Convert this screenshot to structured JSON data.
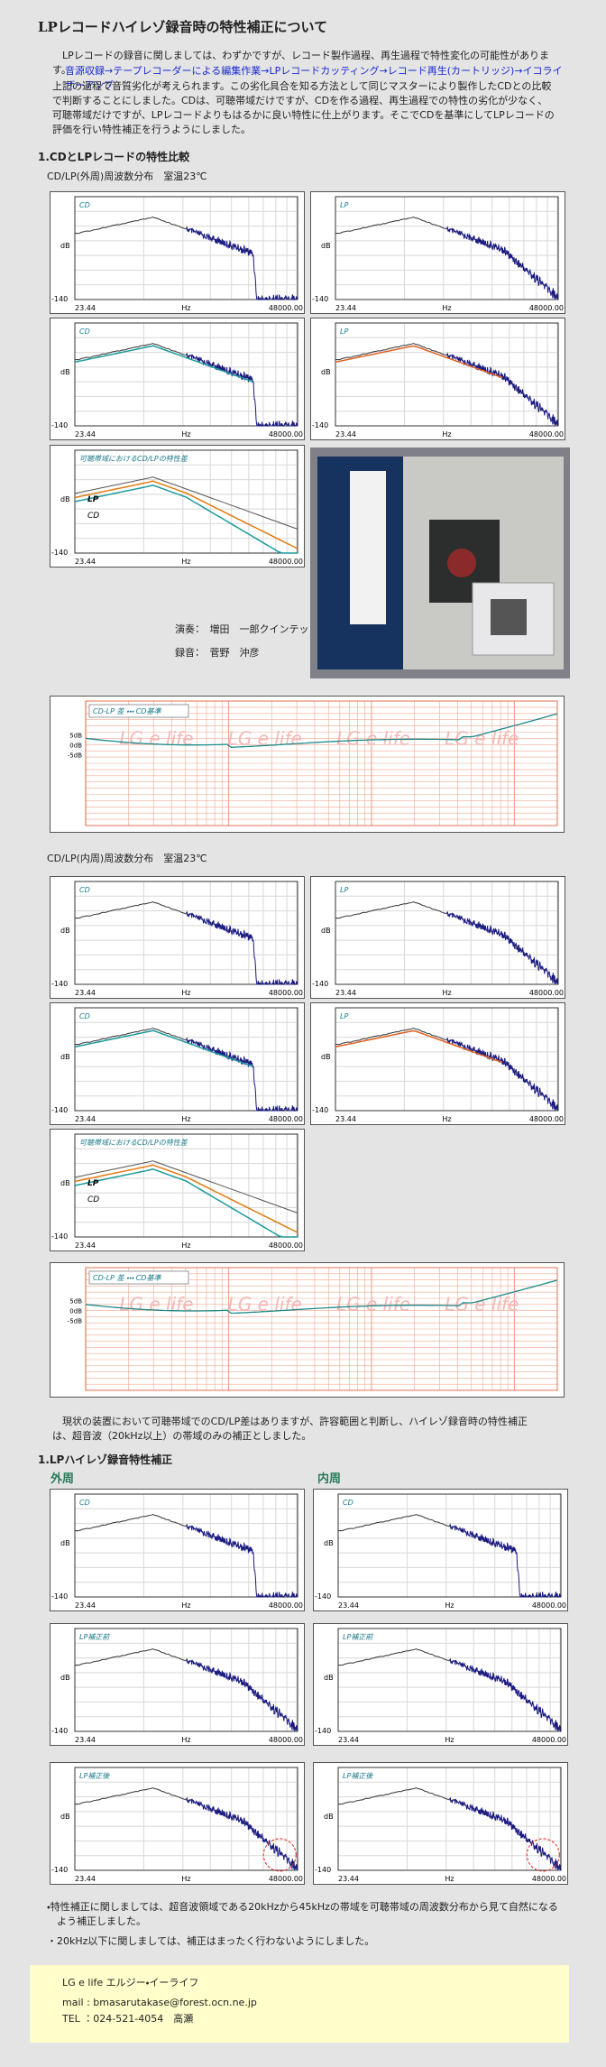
{
  "title": "LPレコードハイレゾ録音時の特性補正について",
  "intro": {
    "p1": "LPレコードの録音に関しましては、わずかですが、レコード製作過程、再生過程で特性変化の可能性があります。",
    "flow": "音源収録→テープレコーダーによる編集作業→LPレコードカッティング→レコード再生(カートリッジ)→イコライザーアンプ",
    "p2": "上記の過程で音質劣化が考えられます。この劣化具合を知る方法として同じマスターにより製作したCDとの比較で判断することにしました。CDは、可聴帯域だけですが、CDを作る過程、再生過程での特性の劣化が少なく、可聴帯域だけですが、LPレコードよりもはるかに良い特性に仕上がります。そこでCDを基準にしてLPレコードの評価を行い特性補正を行うようにしました。"
  },
  "axis": {
    "ylabel": "dB",
    "ymin": "-140",
    "xmin": "23.44",
    "xlabel": "Hz",
    "xmax": "48000.00"
  },
  "compare": {
    "heading": "1.CDとLPレコードの特性比較",
    "outer": {
      "caption": "CD/LP(外周)周波数分布　室温23℃",
      "panels": [
        "CD",
        "LP",
        "CD",
        "LP",
        "可聴帯域におけるCD/LPの特性差"
      ],
      "curve_labels": [
        "LP",
        "CD"
      ]
    },
    "credits": [
      "演奏：　増田　一郎クインテット",
      "録音：　菅野　沖彦"
    ],
    "inner": {
      "caption": "CD/LP(内周)周波数分布　室温23℃",
      "panels": [
        "CD",
        "LP",
        "CD",
        "LP",
        "可聴帯域におけるCD/LPの特性差"
      ],
      "curve_labels": [
        "LP",
        "CD"
      ]
    },
    "diff": {
      "caption": "CD-LP 差 ・・・ CD基準",
      "ticks": [
        "5dB",
        "0dB",
        "-5dB"
      ],
      "watermark": "LG e life"
    },
    "conclusion": "現状の装置において可聴帯域でのCD/LP差はありますが、許容範囲と判断し、ハイレゾ録音時の特性補正は、超音波（20kHz以上）の帯域のみの補正としました。"
  },
  "correction": {
    "heading": "1.LPハイレゾ録音特性補正",
    "columns": [
      "外周",
      "内周"
    ],
    "panels": [
      "CD",
      "CD",
      "LP補正前",
      "LP補正前",
      "LP補正後",
      "LP補正後"
    ]
  },
  "notes": [
    "・特性補正に関しましては、超音波領域である20kHzから45kHzの帯域を可聴帯域の周波数分布から見て自然になるよう補正しました。",
    "・20kHz以下に関しましては、補正はまったく行わないようにしました。"
  ],
  "footer": {
    "name": "LG e life エルジー・イーライフ",
    "mail": "mail : bmasarutakase@forest.ocn.ne.jp",
    "tel": "TEL ：024-521-4054　高瀬"
  }
}
